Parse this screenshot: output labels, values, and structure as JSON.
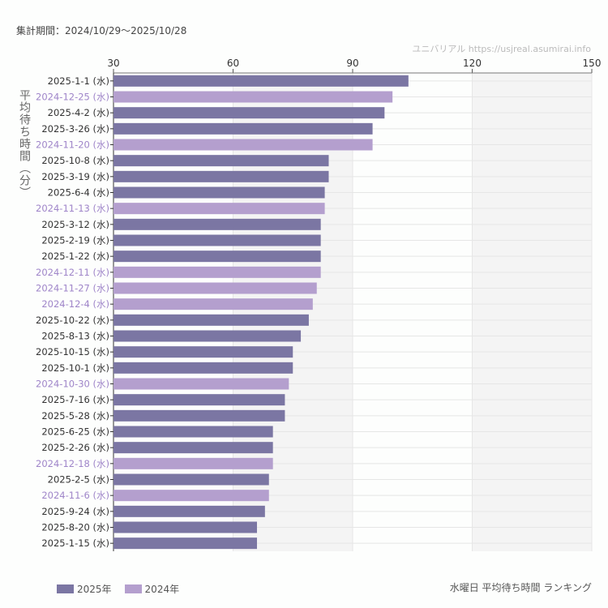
{
  "header": {
    "period": "集計期間：2024/10/29〜2025/10/28",
    "credit": "ユニバリアル https://usjreal.asumirai.info"
  },
  "footer": {
    "subtitle": "水曜日 平均待ち時間 ランキング"
  },
  "chart_data": {
    "type": "bar",
    "orientation": "horizontal",
    "ylabel": "平均待ち時間（分）",
    "xlim": [
      30,
      150
    ],
    "xticks": [
      30,
      60,
      90,
      120,
      150
    ],
    "grid": true,
    "legend_position": "bottom-left",
    "colors": {
      "2025年": "#7b76a3",
      "2024年": "#b49fce",
      "label_2024": "#9f85c9",
      "label_2025": "#333333"
    },
    "legend": [
      "2025年",
      "2024年"
    ],
    "categories": [
      "2025-1-1 (水)",
      "2024-12-25 (水)",
      "2025-4-2 (水)",
      "2025-3-26 (水)",
      "2024-11-20 (水)",
      "2025-10-8 (水)",
      "2025-3-19 (水)",
      "2025-6-4 (水)",
      "2024-11-13 (水)",
      "2025-3-12 (水)",
      "2025-2-19 (水)",
      "2025-1-22 (水)",
      "2024-12-11 (水)",
      "2024-11-27 (水)",
      "2024-12-4 (水)",
      "2025-10-22 (水)",
      "2025-8-13 (水)",
      "2025-10-15 (水)",
      "2025-10-1 (水)",
      "2024-10-30 (水)",
      "2025-7-16 (水)",
      "2025-5-28 (水)",
      "2025-6-25 (水)",
      "2025-2-26 (水)",
      "2024-12-18 (水)",
      "2025-2-5 (水)",
      "2024-11-6 (水)",
      "2025-9-24 (水)",
      "2025-8-20 (水)",
      "2025-1-15 (水)"
    ],
    "values": [
      104,
      100,
      98,
      95,
      95,
      84,
      84,
      83,
      83,
      82,
      82,
      82,
      82,
      81,
      80,
      79,
      77,
      75,
      75,
      74,
      73,
      73,
      70,
      70,
      70,
      69,
      69,
      68,
      66,
      66
    ],
    "series_of": [
      "2025年",
      "2024年",
      "2025年",
      "2025年",
      "2024年",
      "2025年",
      "2025年",
      "2025年",
      "2024年",
      "2025年",
      "2025年",
      "2025年",
      "2024年",
      "2024年",
      "2024年",
      "2025年",
      "2025年",
      "2025年",
      "2025年",
      "2024年",
      "2025年",
      "2025年",
      "2025年",
      "2025年",
      "2024年",
      "2025年",
      "2024年",
      "2025年",
      "2025年",
      "2025年"
    ]
  }
}
